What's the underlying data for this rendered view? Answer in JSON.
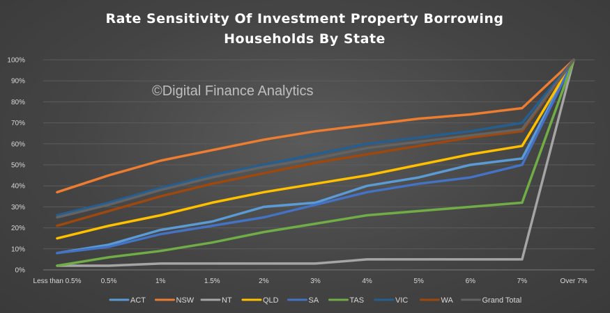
{
  "chart_data": {
    "type": "line",
    "title_lines": [
      "Rate Sensitivity  Of Investment Property Borrowing",
      "Households By State"
    ],
    "watermark": "©Digital Finance Analytics",
    "categories": [
      "Less than 0.5%",
      "0.5%",
      "1%",
      "1.5%",
      "2%",
      "3%",
      "4%",
      "5%",
      "6%",
      "7%",
      "Over 7%"
    ],
    "y_ticks": [
      "0%",
      "10%",
      "20%",
      "30%",
      "40%",
      "50%",
      "60%",
      "70%",
      "80%",
      "90%",
      "100%"
    ],
    "ylim": [
      0,
      100
    ],
    "grid": true,
    "legend_position": "bottom",
    "series": [
      {
        "name": "ACT",
        "color": "#5b9bd5",
        "values": [
          8,
          12,
          19,
          23,
          30,
          32,
          40,
          44,
          50,
          53,
          100
        ]
      },
      {
        "name": "NSW",
        "color": "#ed7d31",
        "values": [
          37,
          45,
          52,
          57,
          62,
          66,
          69,
          72,
          74,
          77,
          100
        ]
      },
      {
        "name": "NT",
        "color": "#a5a5a5",
        "values": [
          2,
          2,
          3,
          3,
          3,
          3,
          5,
          5,
          5,
          5,
          100
        ]
      },
      {
        "name": "QLD",
        "color": "#ffc000",
        "values": [
          15,
          21,
          26,
          32,
          37,
          41,
          45,
          50,
          55,
          59,
          100
        ]
      },
      {
        "name": "SA",
        "color": "#4472c4",
        "values": [
          8,
          11,
          17,
          21,
          25,
          31,
          37,
          41,
          44,
          50,
          100
        ]
      },
      {
        "name": "TAS",
        "color": "#70ad47",
        "values": [
          2,
          6,
          9,
          13,
          18,
          22,
          26,
          28,
          30,
          32,
          100
        ]
      },
      {
        "name": "VIC",
        "color": "#255e91",
        "values": [
          26,
          32,
          39,
          45,
          50,
          55,
          60,
          63,
          66,
          70,
          100
        ]
      },
      {
        "name": "WA",
        "color": "#9e480e",
        "values": [
          21,
          28,
          35,
          41,
          46,
          51,
          55,
          59,
          63,
          66,
          100
        ]
      },
      {
        "name": "Grand Total",
        "color": "#636363",
        "values": [
          25,
          31,
          38,
          44,
          49,
          53,
          58,
          61,
          64,
          67,
          100
        ]
      }
    ]
  }
}
